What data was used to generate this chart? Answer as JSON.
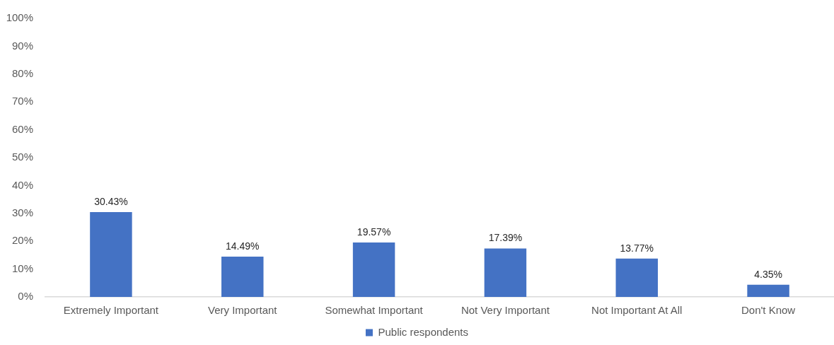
{
  "chart_data": {
    "type": "bar",
    "categories": [
      "Extremely Important",
      "Very Important",
      "Somewhat Important",
      "Not Very Important",
      "Not Important At All",
      "Don't Know"
    ],
    "series": [
      {
        "name": "Public respondents",
        "color": "#4472c4",
        "values": [
          30.43,
          14.49,
          19.57,
          17.39,
          13.77,
          4.35
        ],
        "value_labels": [
          "30.43%",
          "14.49%",
          "19.57%",
          "17.39%",
          "13.77%",
          "4.35%"
        ]
      }
    ],
    "ylim": [
      0,
      100
    ],
    "yticks": [
      {
        "value": 0,
        "label": "0%"
      },
      {
        "value": 10,
        "label": "10%"
      },
      {
        "value": 20,
        "label": "20%"
      },
      {
        "value": 30,
        "label": "30%"
      },
      {
        "value": 40,
        "label": "40%"
      },
      {
        "value": 50,
        "label": "50%"
      },
      {
        "value": 60,
        "label": "60%"
      },
      {
        "value": 70,
        "label": "70%"
      },
      {
        "value": 80,
        "label": "80%"
      },
      {
        "value": 90,
        "label": "90%"
      },
      {
        "value": 100,
        "label": "100%"
      }
    ],
    "legend": "bottom"
  }
}
